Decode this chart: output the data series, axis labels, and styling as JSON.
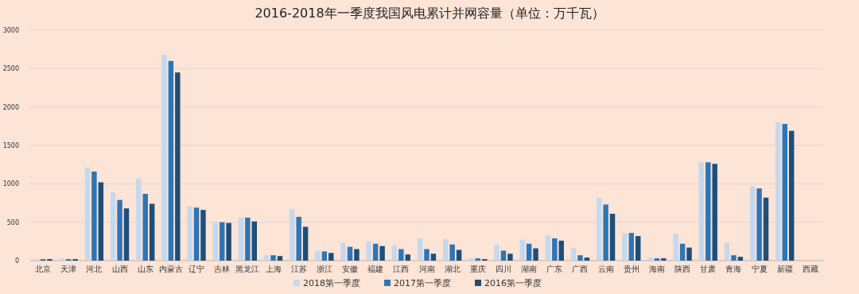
{
  "chart_data": {
    "type": "bar",
    "title": "2016-2018年一季度我国风电累计并网容量（单位：万千瓦）",
    "categories": [
      "北京",
      "天津",
      "河北",
      "山西",
      "山东",
      "内蒙古",
      "辽宁",
      "吉林",
      "黑龙江",
      "上海",
      "江苏",
      "浙江",
      "安徽",
      "福建",
      "江西",
      "河南",
      "湖北",
      "重庆",
      "四川",
      "湖南",
      "广东",
      "广西",
      "云南",
      "贵州",
      "海南",
      "陕西",
      "甘肃",
      "青海",
      "宁夏",
      "新疆",
      "西藏"
    ],
    "series": [
      {
        "name": "2018第一季度",
        "color": "#c5d9ee",
        "values": [
          20,
          30,
          1210,
          890,
          1070,
          2680,
          710,
          500,
          560,
          70,
          670,
          130,
          230,
          250,
          200,
          290,
          280,
          30,
          210,
          270,
          330,
          160,
          820,
          360,
          40,
          350,
          1280,
          230,
          970,
          1800,
          0
        ]
      },
      {
        "name": "2017第一季度",
        "color": "#2e75b6",
        "values": [
          20,
          20,
          1160,
          790,
          870,
          2600,
          690,
          500,
          560,
          70,
          570,
          120,
          180,
          220,
          150,
          150,
          210,
          30,
          130,
          220,
          290,
          70,
          730,
          360,
          30,
          220,
          1280,
          70,
          940,
          1780,
          0
        ]
      },
      {
        "name": "2016第一季度",
        "color": "#1f4e79",
        "values": [
          20,
          20,
          1020,
          680,
          740,
          2450,
          660,
          490,
          510,
          60,
          440,
          100,
          150,
          190,
          80,
          90,
          140,
          20,
          90,
          160,
          260,
          40,
          610,
          320,
          30,
          170,
          1260,
          50,
          820,
          1690,
          0
        ]
      }
    ],
    "ylim": [
      0,
      3000
    ],
    "yticks": [
      0,
      500,
      1000,
      1500,
      2000,
      2500,
      3000
    ],
    "grid": "y",
    "legend": "bottom"
  }
}
